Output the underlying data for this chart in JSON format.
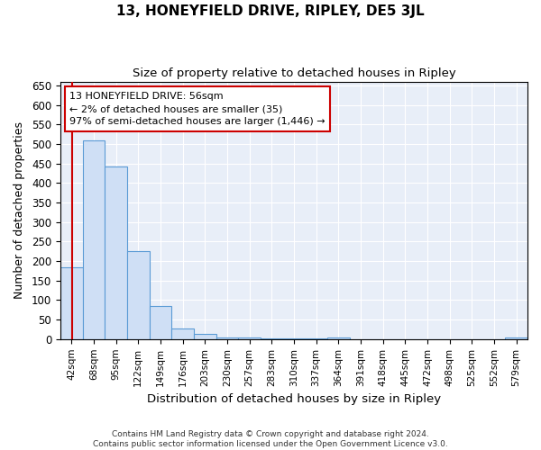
{
  "title": "13, HONEYFIELD DRIVE, RIPLEY, DE5 3JL",
  "subtitle": "Size of property relative to detached houses in Ripley",
  "xlabel": "Distribution of detached houses by size in Ripley",
  "ylabel": "Number of detached properties",
  "categories": [
    "42sqm",
    "68sqm",
    "95sqm",
    "122sqm",
    "149sqm",
    "176sqm",
    "203sqm",
    "230sqm",
    "257sqm",
    "283sqm",
    "310sqm",
    "337sqm",
    "364sqm",
    "391sqm",
    "418sqm",
    "445sqm",
    "472sqm",
    "498sqm",
    "525sqm",
    "552sqm",
    "579sqm"
  ],
  "values": [
    183,
    510,
    443,
    225,
    85,
    28,
    13,
    5,
    4,
    2,
    1,
    1,
    5,
    0,
    0,
    0,
    0,
    0,
    0,
    0,
    5
  ],
  "bar_fill_color": "#cfdff5",
  "bar_edge_color": "#5b9bd5",
  "background_color": "#e8eef8",
  "grid_color": "#ffffff",
  "annotation_text": "13 HONEYFIELD DRIVE: 56sqm\n← 2% of detached houses are smaller (35)\n97% of semi-detached houses are larger (1,446) →",
  "annotation_box_color": "#ffffff",
  "annotation_box_edge_color": "#cc0000",
  "vline_color": "#cc0000",
  "vline_x_index": 0.0,
  "ylim": [
    0,
    660
  ],
  "yticks": [
    0,
    50,
    100,
    150,
    200,
    250,
    300,
    350,
    400,
    450,
    500,
    550,
    600,
    650
  ],
  "footnote1": "Contains HM Land Registry data © Crown copyright and database right 2024.",
  "footnote2": "Contains public sector information licensed under the Open Government Licence v3.0."
}
